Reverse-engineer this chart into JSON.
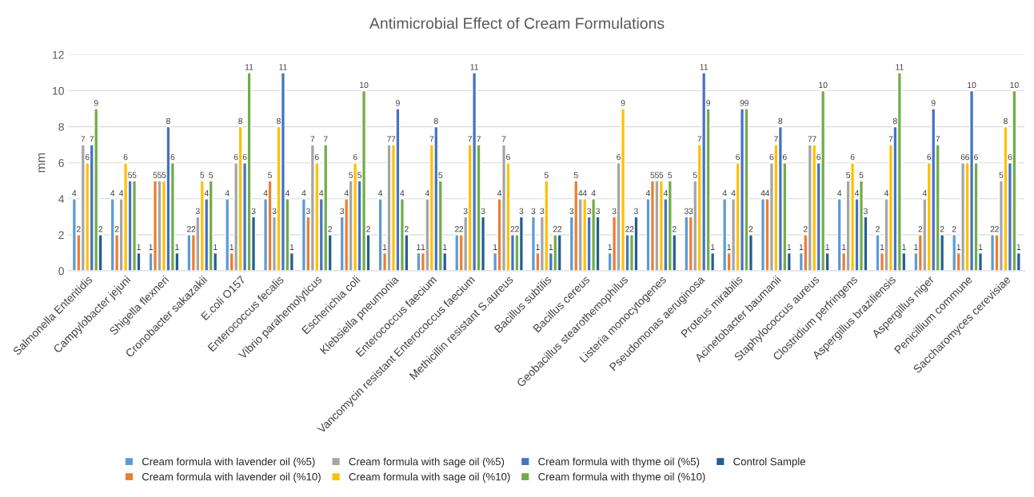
{
  "chart_data": {
    "type": "bar",
    "title": "Antimicrobial Effect of Cream Formulations",
    "ylabel": "mm",
    "categories": [
      "Salmonella Enteritidis",
      "Campylobacter jejuni",
      "Shigella flexneri",
      "Cronobacter sakazakii",
      "E.coli O157",
      "Enterococcus fecalis",
      "Vibrio parahemolyticus",
      "Escherichia coli",
      "Klebsiella pneumonia",
      "Enterococcus faecium",
      "Vancomycin resistant Enterococcus faecium",
      "Methicillin resistant S.aureus",
      "Bacillus subtilis",
      "Bacillus cereus",
      "Geobacillus stearothemophilus",
      "Listeria monocytogenes",
      "Pseudomonas aeruginosa",
      "Proteus mirabilis",
      "Acinetobacter baumanii",
      "Staphylococcus aureus",
      "Clostridium perfringens",
      "Aspergillus braziliensis",
      "Aspergillus niger",
      "Penicillium commune",
      "Saccharomyces cerevisiae"
    ],
    "series": [
      {
        "name": "Cream formula with lavender oil (%5)",
        "color": "#5b9bd5",
        "values": [
          4,
          4,
          1,
          2,
          4,
          4,
          4,
          3,
          4,
          1,
          2,
          1,
          3,
          3,
          1,
          4,
          3,
          4,
          4,
          1,
          4,
          2,
          1,
          2,
          2
        ]
      },
      {
        "name": "Cream formula with lavender oil (%10)",
        "color": "#ed7d31",
        "values": [
          2,
          2,
          5,
          2,
          1,
          5,
          3,
          4,
          1,
          1,
          2,
          4,
          1,
          5,
          3,
          5,
          3,
          1,
          4,
          2,
          1,
          1,
          2,
          1,
          2
        ]
      },
      {
        "name": "Cream formula with sage oil (%5)",
        "color": "#a5a5a5",
        "values": [
          7,
          4,
          5,
          3,
          6,
          3,
          7,
          5,
          7,
          4,
          3,
          7,
          3,
          4,
          6,
          5,
          5,
          4,
          6,
          7,
          5,
          4,
          4,
          6,
          5
        ]
      },
      {
        "name": "Cream formula with sage oil (%10)",
        "color": "#ffc000",
        "values": [
          6,
          6,
          5,
          5,
          8,
          8,
          6,
          6,
          7,
          7,
          7,
          6,
          5,
          4,
          9,
          5,
          7,
          6,
          7,
          7,
          6,
          7,
          6,
          6,
          8
        ]
      },
      {
        "name": "Cream formula with thyme oil (%5)",
        "color": "#4472c4",
        "values": [
          7,
          5,
          8,
          4,
          6,
          11,
          4,
          5,
          9,
          8,
          11,
          2,
          1,
          3,
          2,
          4,
          11,
          9,
          8,
          6,
          4,
          8,
          9,
          10,
          6
        ]
      },
      {
        "name": "Cream formula with thyme oil (%10)",
        "color": "#70ad47",
        "values": [
          9,
          5,
          6,
          5,
          11,
          4,
          7,
          10,
          4,
          5,
          7,
          2,
          2,
          4,
          2,
          5,
          9,
          9,
          6,
          10,
          5,
          11,
          7,
          6,
          10
        ]
      },
      {
        "name": "Control Sample",
        "color": "#255e91",
        "values": [
          2,
          1,
          1,
          1,
          3,
          1,
          2,
          2,
          2,
          1,
          3,
          3,
          2,
          3,
          3,
          2,
          1,
          2,
          1,
          1,
          3,
          1,
          2,
          1,
          1
        ]
      }
    ],
    "ylim": [
      0,
      12
    ],
    "yticks": [
      0,
      2,
      4,
      6,
      8,
      10,
      12
    ],
    "grid": "y",
    "legend": "bottom",
    "data_labels": true
  }
}
